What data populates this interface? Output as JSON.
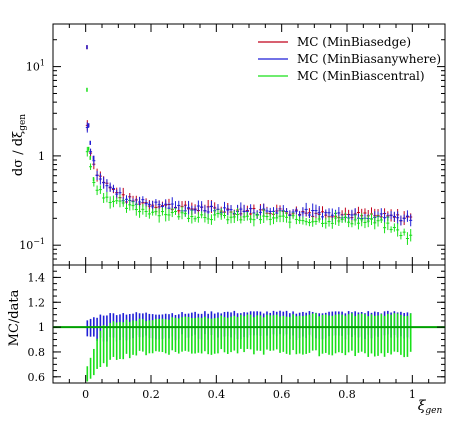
{
  "chart_data": [
    {
      "panel": "main",
      "type": "scatter",
      "ylabel": "dσ/dξgen",
      "ylabel_parts": [
        "dσ / dξ",
        "gen"
      ],
      "yscale": "log",
      "ylim": [
        0.06,
        30
      ],
      "xlim": [
        -0.1,
        1.1
      ],
      "y_ticks": [
        {
          "value": 0.1,
          "base": "10",
          "exp": "−1"
        },
        {
          "value": 1,
          "base": "1",
          "exp": ""
        },
        {
          "value": 10,
          "base": "10",
          "exp": "1"
        }
      ],
      "legend_position": "top-right",
      "series": [
        {
          "name": "MC (MinBiasedge)",
          "color": "#c0001a",
          "x": [
            0.0,
            0.005,
            0.01,
            0.02,
            0.03,
            0.05,
            0.08,
            0.12,
            0.2,
            0.3,
            0.4,
            0.5,
            0.6,
            0.7,
            0.8,
            0.9,
            1.0
          ],
          "y": [
            16.5,
            2.2,
            1.4,
            0.95,
            0.7,
            0.55,
            0.42,
            0.33,
            0.29,
            0.26,
            0.25,
            0.24,
            0.24,
            0.23,
            0.22,
            0.21,
            0.2
          ]
        },
        {
          "name": "MC (MinBiasanywhere)",
          "color": "#1f1fd6",
          "x": [
            0.0,
            0.005,
            0.01,
            0.02,
            0.03,
            0.05,
            0.08,
            0.12,
            0.2,
            0.3,
            0.4,
            0.5,
            0.6,
            0.7,
            0.8,
            0.9,
            1.0
          ],
          "y": [
            16.5,
            2.2,
            1.4,
            0.95,
            0.7,
            0.55,
            0.42,
            0.33,
            0.29,
            0.26,
            0.25,
            0.24,
            0.24,
            0.23,
            0.22,
            0.21,
            0.2
          ]
        },
        {
          "name": "MC (MinBiascentral)",
          "color": "#19e019",
          "x": [
            0.0,
            0.005,
            0.01,
            0.02,
            0.03,
            0.05,
            0.08,
            0.12,
            0.2,
            0.3,
            0.4,
            0.5,
            0.6,
            0.7,
            0.8,
            0.9,
            1.0
          ],
          "y": [
            5.5,
            1.2,
            0.95,
            0.55,
            0.48,
            0.38,
            0.32,
            0.27,
            0.24,
            0.22,
            0.21,
            0.2,
            0.2,
            0.19,
            0.19,
            0.18,
            0.12
          ]
        }
      ]
    },
    {
      "panel": "ratio",
      "type": "scatter",
      "ylabel": "MC/data",
      "xlabel": "ξgen",
      "xlabel_parts": [
        "ξ",
        "gen"
      ],
      "xlim": [
        -0.1,
        1.1
      ],
      "ylim": [
        0.55,
        1.5
      ],
      "reference_line": 1,
      "x_ticks": [
        "0",
        "0.2",
        "0.4",
        "0.6",
        "0.8",
        "1"
      ],
      "x_tick_values": [
        0,
        0.2,
        0.4,
        0.6,
        0.8,
        1
      ],
      "y_ticks": [
        "0.6",
        "0.8",
        "1",
        "1.2",
        "1.4"
      ],
      "y_tick_values": [
        0.6,
        0.8,
        1,
        1.2,
        1.4
      ],
      "series": [
        {
          "name": "MC (MinBiasanywhere)",
          "color": "#1f1fd6",
          "x": [
            0.0,
            0.05,
            0.1,
            0.2,
            0.3,
            0.4,
            0.5,
            0.6,
            0.7,
            0.8,
            0.9,
            1.0
          ],
          "y_low": [
            0.93,
            0.9,
            0.91,
            0.92,
            0.92,
            0.92,
            0.92,
            0.92,
            0.92,
            0.92,
            0.92,
            0.92
          ],
          "y_high": [
            1.05,
            1.1,
            1.11,
            1.11,
            1.11,
            1.12,
            1.12,
            1.12,
            1.12,
            1.12,
            1.12,
            1.12
          ]
        },
        {
          "name": "MC (MinBiascentral)",
          "color": "#19e019",
          "x": [
            0.0,
            0.05,
            0.1,
            0.2,
            0.3,
            0.4,
            0.5,
            0.6,
            0.7,
            0.8,
            0.9,
            1.0
          ],
          "y_low": [
            0.55,
            0.68,
            0.76,
            0.8,
            0.8,
            0.8,
            0.8,
            0.8,
            0.79,
            0.79,
            0.78,
            0.78
          ],
          "y_high": [
            0.65,
            1.0,
            1.05,
            1.06,
            1.08,
            1.08,
            1.09,
            1.09,
            1.1,
            1.1,
            1.1,
            1.1
          ]
        }
      ]
    }
  ]
}
